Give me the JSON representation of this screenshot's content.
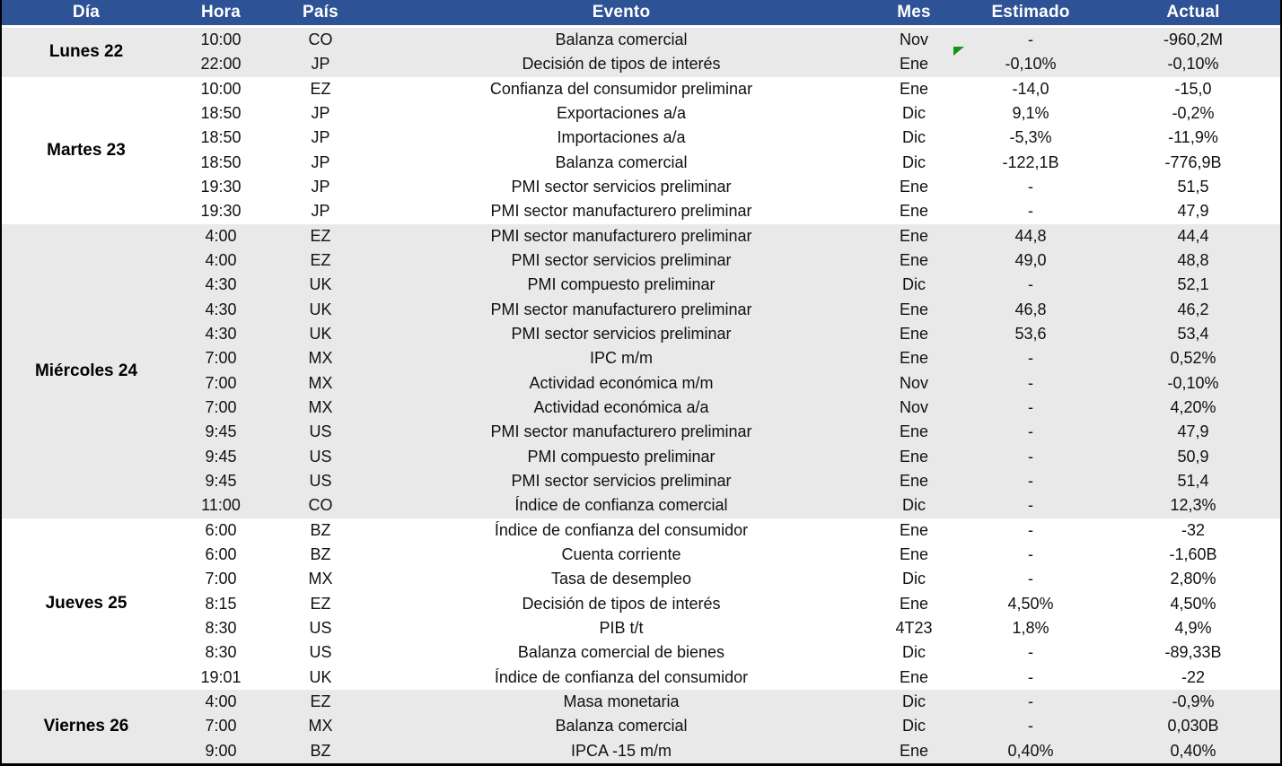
{
  "colors": {
    "header_bg": "#2E5296",
    "header_text": "#FFFFFF",
    "group_alt_bg": "#E9E9E9",
    "group_bg": "#FFFFFF",
    "outer_border": "#000000",
    "flag_green": "#129612"
  },
  "table": {
    "columns": [
      {
        "key": "dia",
        "label": "Día"
      },
      {
        "key": "hora",
        "label": "Hora"
      },
      {
        "key": "pais",
        "label": "País"
      },
      {
        "key": "evento",
        "label": "Evento"
      },
      {
        "key": "mes",
        "label": "Mes"
      },
      {
        "key": "estimado",
        "label": "Estimado"
      },
      {
        "key": "actual",
        "label": "Actual"
      }
    ],
    "groups": [
      {
        "day": "Lunes 22",
        "rows": [
          {
            "hora": "10:00",
            "pais": "CO",
            "evento": "Balanza comercial",
            "mes": "Nov",
            "estimado": "-",
            "actual": "-960,2M"
          },
          {
            "hora": "22:00",
            "pais": "JP",
            "evento": "Decisión de tipos de interés",
            "mes": "Ene",
            "estimado": "-0,10%",
            "actual": "-0,10%"
          }
        ]
      },
      {
        "day": "Martes 23",
        "rows": [
          {
            "hora": "10:00",
            "pais": "EZ",
            "evento": "Confianza del consumidor preliminar",
            "mes": "Ene",
            "estimado": "-14,0",
            "actual": "-15,0"
          },
          {
            "hora": "18:50",
            "pais": "JP",
            "evento": "Exportaciones a/a",
            "mes": "Dic",
            "estimado": "9,1%",
            "actual": "-0,2%"
          },
          {
            "hora": "18:50",
            "pais": "JP",
            "evento": "Importaciones a/a",
            "mes": "Dic",
            "estimado": "-5,3%",
            "actual": "-11,9%"
          },
          {
            "hora": "18:50",
            "pais": "JP",
            "evento": "Balanza comercial",
            "mes": "Dic",
            "estimado": "-122,1B",
            "actual": "-776,9B"
          },
          {
            "hora": "19:30",
            "pais": "JP",
            "evento": "PMI sector servicios preliminar",
            "mes": "Ene",
            "estimado": "-",
            "actual": "51,5"
          },
          {
            "hora": "19:30",
            "pais": "JP",
            "evento": "PMI sector manufacturero preliminar",
            "mes": "Ene",
            "estimado": "-",
            "actual": "47,9"
          }
        ]
      },
      {
        "day": "Miércoles 24",
        "rows": [
          {
            "hora": "4:00",
            "pais": "EZ",
            "evento": "PMI sector manufacturero preliminar",
            "mes": "Ene",
            "estimado": "44,8",
            "actual": "44,4"
          },
          {
            "hora": "4:00",
            "pais": "EZ",
            "evento": "PMI sector servicios preliminar",
            "mes": "Ene",
            "estimado": "49,0",
            "actual": "48,8"
          },
          {
            "hora": "4:30",
            "pais": "UK",
            "evento": "PMI compuesto preliminar",
            "mes": "Dic",
            "estimado": "-",
            "actual": "52,1"
          },
          {
            "hora": "4:30",
            "pais": "UK",
            "evento": "PMI sector manufacturero preliminar",
            "mes": "Ene",
            "estimado": "46,8",
            "actual": "46,2"
          },
          {
            "hora": "4:30",
            "pais": "UK",
            "evento": "PMI sector servicios preliminar",
            "mes": "Ene",
            "estimado": "53,6",
            "actual": "53,4"
          },
          {
            "hora": "7:00",
            "pais": "MX",
            "evento": "IPC m/m",
            "mes": "Ene",
            "estimado": "-",
            "actual": "0,52%"
          },
          {
            "hora": "7:00",
            "pais": "MX",
            "evento": "Actividad económica m/m",
            "mes": "Nov",
            "estimado": "-",
            "actual": "-0,10%"
          },
          {
            "hora": "7:00",
            "pais": "MX",
            "evento": "Actividad económica a/a",
            "mes": "Nov",
            "estimado": "-",
            "actual": "4,20%"
          },
          {
            "hora": "9:45",
            "pais": "US",
            "evento": "PMI sector manufacturero preliminar",
            "mes": "Ene",
            "estimado": "-",
            "actual": "47,9"
          },
          {
            "hora": "9:45",
            "pais": "US",
            "evento": "PMI compuesto preliminar",
            "mes": "Ene",
            "estimado": "-",
            "actual": "50,9"
          },
          {
            "hora": "9:45",
            "pais": "US",
            "evento": "PMI sector servicios preliminar",
            "mes": "Ene",
            "estimado": "-",
            "actual": "51,4"
          },
          {
            "hora": "11:00",
            "pais": "CO",
            "evento": "Índice de confianza comercial",
            "mes": "Dic",
            "estimado": "-",
            "actual": "12,3%"
          }
        ]
      },
      {
        "day": "Jueves 25",
        "rows": [
          {
            "hora": "6:00",
            "pais": "BZ",
            "evento": "Índice de confianza del consumidor",
            "mes": "Ene",
            "estimado": "-",
            "actual": "-32"
          },
          {
            "hora": "6:00",
            "pais": "BZ",
            "evento": "Cuenta corriente",
            "mes": "Ene",
            "estimado": "-",
            "actual": "-1,60B"
          },
          {
            "hora": "7:00",
            "pais": "MX",
            "evento": "Tasa de desempleo",
            "mes": "Dic",
            "estimado": "-",
            "actual": "2,80%"
          },
          {
            "hora": "8:15",
            "pais": "EZ",
            "evento": "Decisión de tipos de interés",
            "mes": "Ene",
            "estimado": "4,50%",
            "actual": "4,50%"
          },
          {
            "hora": "8:30",
            "pais": "US",
            "evento": "PIB t/t",
            "mes": "4T23",
            "estimado": "1,8%",
            "actual": "4,9%"
          },
          {
            "hora": "8:30",
            "pais": "US",
            "evento": "Balanza comercial de bienes",
            "mes": "Dic",
            "estimado": "-",
            "actual": "-89,33B"
          },
          {
            "hora": "19:01",
            "pais": "UK",
            "evento": "Índice de confianza del consumidor",
            "mes": "Ene",
            "estimado": "-",
            "actual": "-22"
          }
        ]
      },
      {
        "day": "Viernes 26",
        "rows": [
          {
            "hora": "4:00",
            "pais": "EZ",
            "evento": "Masa monetaria",
            "mes": "Dic",
            "estimado": "-",
            "actual": "-0,9%"
          },
          {
            "hora": "7:00",
            "pais": "MX",
            "evento": "Balanza comercial",
            "mes": "Dic",
            "estimado": "-",
            "actual": "0,030B"
          },
          {
            "hora": "9:00",
            "pais": "BZ",
            "evento": "IPCA -15 m/m",
            "mes": "Ene",
            "estimado": "0,40%",
            "actual": "0,40%"
          }
        ]
      }
    ],
    "marker": {
      "icon": "green-corner-triangle",
      "group": 0,
      "row": 1,
      "column": "estimado",
      "color": "#129612"
    }
  }
}
